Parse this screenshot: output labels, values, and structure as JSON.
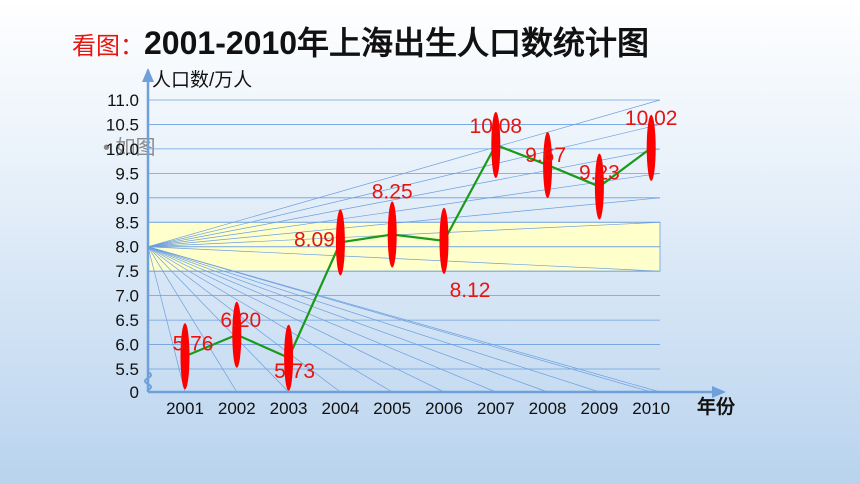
{
  "title": {
    "prefix": "看图：",
    "main": "2001-2010年上海出生人口数统计图"
  },
  "note": "• 如图",
  "chart_data": {
    "type": "line",
    "ylabel": "人口数/万人",
    "xlabel": "年份",
    "categories": [
      "2001",
      "2002",
      "2003",
      "2004",
      "2005",
      "2006",
      "2007",
      "2008",
      "2009",
      "2010"
    ],
    "values": [
      5.76,
      6.2,
      5.73,
      8.09,
      8.25,
      8.12,
      10.08,
      9.67,
      9.23,
      10.02
    ],
    "value_labels": [
      "5.76",
      "6.20",
      "5.73",
      "8.09",
      "8.25",
      "8.12",
      "10.08",
      "9.67",
      "9.23",
      "10.02"
    ],
    "y_ticks": [
      "0",
      "5.5",
      "6.0",
      "6.5",
      "7.0",
      "7.5",
      "8.0",
      "8.5",
      "9.0",
      "9.5",
      "10.0",
      "10.5",
      "11.0"
    ],
    "ylim": [
      5,
      11
    ],
    "axis_break": true,
    "highlight_band": [
      7.5,
      8.5
    ],
    "grid": true,
    "colors": {
      "line": "#1a9a1a",
      "marker": "#ff0000",
      "label": "#e8140f",
      "gridline": "#6c9fe0",
      "band": "#ffffcc",
      "axis": "#6fa0da"
    }
  }
}
